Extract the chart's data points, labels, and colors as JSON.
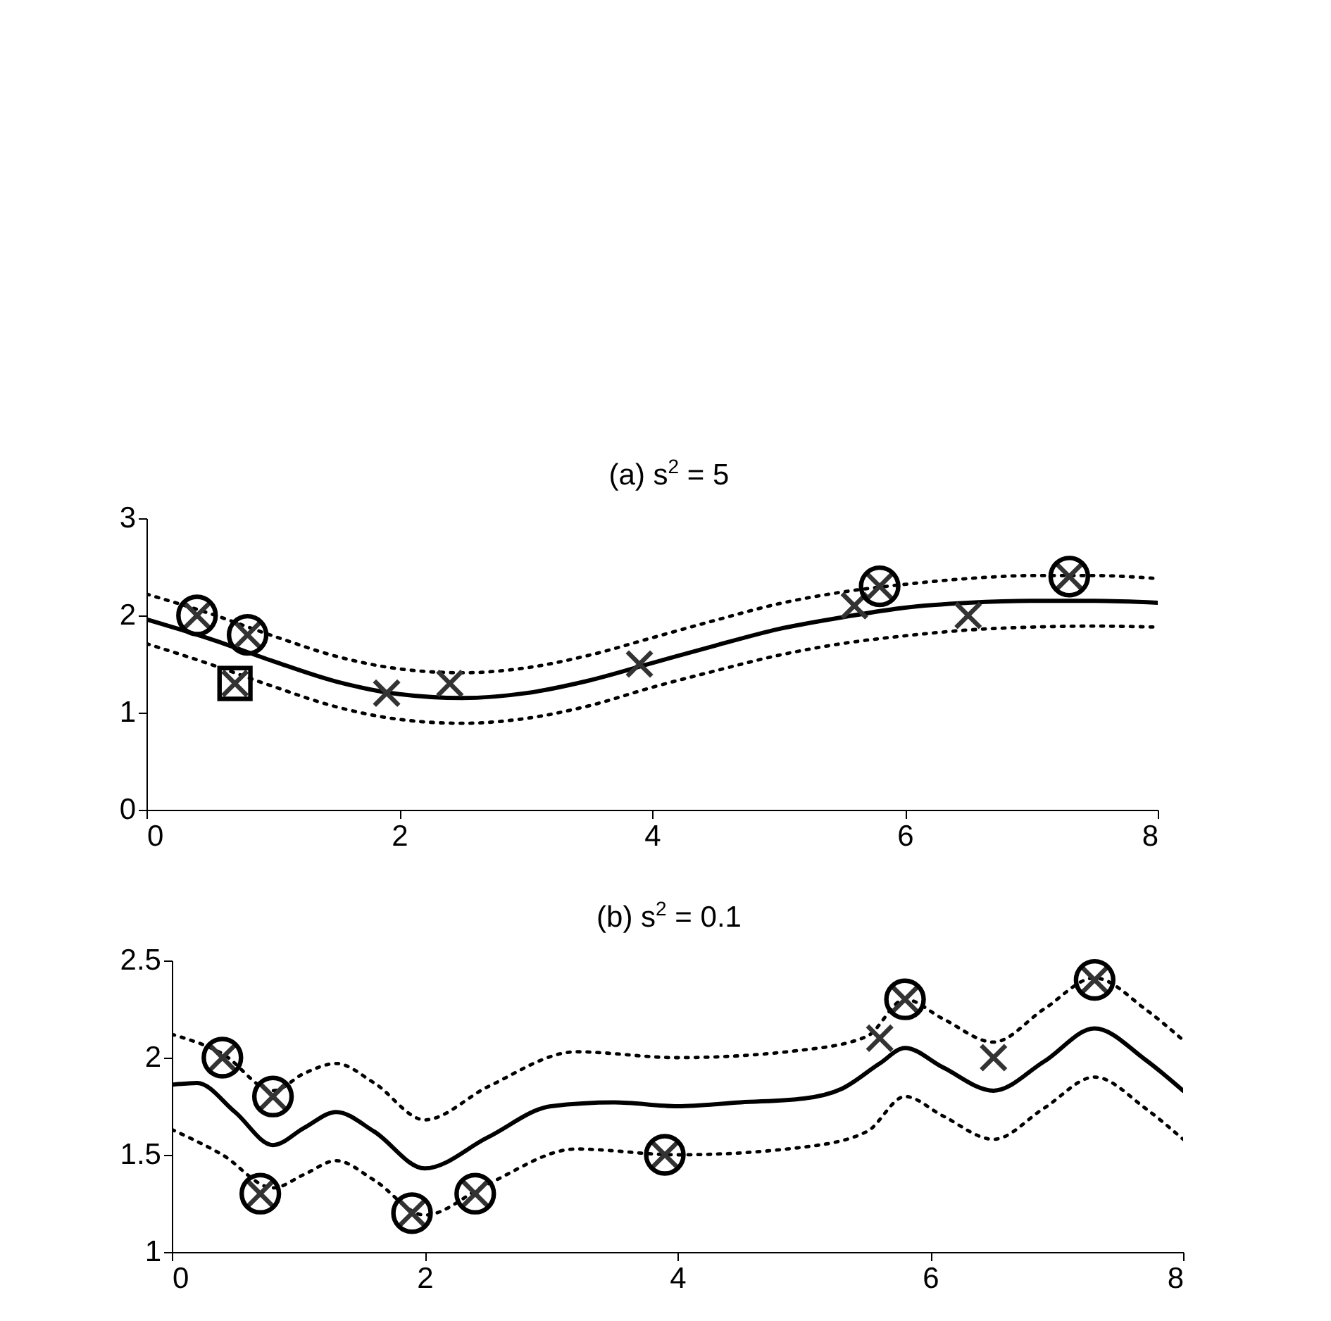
{
  "chart_data": [
    {
      "type": "line",
      "title": "(a) s$^{2}$ = 5",
      "xlim": [
        0,
        8
      ],
      "xticks": [
        0,
        2,
        4,
        6,
        8
      ],
      "ylim": [
        0,
        3
      ],
      "yticks": [
        0,
        1,
        2,
        3
      ],
      "series": [
        {
          "type": "line",
          "line_style": "solid",
          "color": "#000000",
          "x": [
            0,
            0.5,
            1,
            1.5,
            2,
            2.5,
            3,
            3.5,
            4,
            4.5,
            5,
            5.5,
            6,
            6.5,
            7,
            7.5,
            8
          ],
          "values": [
            1.96,
            1.76,
            1.53,
            1.32,
            1.19,
            1.15,
            1.2,
            1.33,
            1.51,
            1.69,
            1.86,
            1.98,
            2.08,
            2.13,
            2.15,
            2.15,
            2.13
          ]
        },
        {
          "type": "line",
          "line_style": "dotted",
          "color": "#000000",
          "x": [
            0,
            0.5,
            1,
            1.5,
            2,
            2.5,
            3,
            3.5,
            4,
            4.5,
            5,
            5.5,
            6,
            6.5,
            7,
            7.5,
            8
          ],
          "values": [
            2.22,
            2.02,
            1.79,
            1.58,
            1.45,
            1.41,
            1.46,
            1.59,
            1.77,
            1.95,
            2.12,
            2.24,
            2.32,
            2.38,
            2.41,
            2.41,
            2.38
          ]
        },
        {
          "type": "line",
          "line_style": "dotted",
          "color": "#000000",
          "x": [
            0,
            0.5,
            1,
            1.5,
            2,
            2.5,
            3,
            3.5,
            4,
            4.5,
            5,
            5.5,
            6,
            6.5,
            7,
            7.5,
            8
          ],
          "values": [
            1.71,
            1.5,
            1.27,
            1.06,
            0.93,
            0.89,
            0.94,
            1.07,
            1.26,
            1.43,
            1.59,
            1.71,
            1.79,
            1.85,
            1.88,
            1.89,
            1.88
          ]
        },
        {
          "type": "scatter",
          "marker": "cross",
          "color": "#333333",
          "x": [
            0.4,
            0.7,
            0.8,
            1.9,
            2.4,
            3.9,
            5.6,
            5.8,
            6.5,
            7.3
          ],
          "values": [
            2.0,
            1.3,
            1.8,
            1.2,
            1.3,
            1.5,
            2.1,
            2.3,
            2.0,
            2.4
          ]
        },
        {
          "type": "scatter",
          "marker": "circle",
          "color": "#000000",
          "x": [
            0.4,
            0.8,
            5.8,
            7.3
          ],
          "values": [
            2.0,
            1.8,
            2.3,
            2.4
          ]
        },
        {
          "type": "scatter",
          "marker": "square",
          "color": "#000000",
          "x": [
            0.7
          ],
          "values": [
            1.3
          ]
        }
      ]
    },
    {
      "type": "line",
      "title": "(b) s$^{2}$ = 0.1",
      "xlim": [
        0,
        8
      ],
      "xticks": [
        0,
        2,
        4,
        6,
        8
      ],
      "ylim": [
        1,
        2.5
      ],
      "yticks": [
        1,
        1.5,
        2,
        2.5
      ],
      "series": [
        {
          "type": "line",
          "line_style": "solid",
          "color": "#000000",
          "x": [
            0,
            0.2,
            0.5,
            0.8,
            1.05,
            1.3,
            1.6,
            2,
            2.5,
            3,
            3.5,
            4,
            4.5,
            5,
            5.3,
            5.6,
            5.8,
            6.1,
            6.5,
            6.9,
            7.3,
            7.7,
            8
          ],
          "values": [
            1.86,
            1.87,
            1.72,
            1.55,
            1.64,
            1.72,
            1.62,
            1.43,
            1.59,
            1.75,
            1.77,
            1.75,
            1.77,
            1.79,
            1.84,
            1.97,
            2.05,
            1.95,
            1.83,
            1.98,
            2.15,
            1.99,
            1.83
          ]
        },
        {
          "type": "line",
          "line_style": "dotted",
          "color": "#000000",
          "x": [
            0,
            0.4,
            0.8,
            1.05,
            1.3,
            1.6,
            2,
            2.5,
            3.2,
            4,
            5,
            5.5,
            5.8,
            6.1,
            6.5,
            6.9,
            7.3,
            7.7,
            8
          ],
          "values": [
            2.12,
            2.02,
            1.83,
            1.92,
            1.97,
            1.87,
            1.68,
            1.85,
            2.03,
            2.0,
            2.04,
            2.11,
            2.3,
            2.2,
            2.08,
            2.25,
            2.41,
            2.25,
            2.09
          ]
        },
        {
          "type": "line",
          "line_style": "dotted",
          "color": "#000000",
          "x": [
            0,
            0.4,
            0.8,
            1.05,
            1.3,
            1.6,
            2,
            2.5,
            3.2,
            4,
            5,
            5.5,
            5.8,
            6.1,
            6.5,
            6.9,
            7.3,
            7.7,
            8
          ],
          "values": [
            1.63,
            1.5,
            1.33,
            1.4,
            1.47,
            1.37,
            1.19,
            1.35,
            1.53,
            1.5,
            1.54,
            1.62,
            1.8,
            1.7,
            1.58,
            1.74,
            1.9,
            1.74,
            1.58
          ]
        },
        {
          "type": "scatter",
          "marker": "cross",
          "color": "#333333",
          "x": [
            0.4,
            0.7,
            0.8,
            1.9,
            2.4,
            3.9,
            5.6,
            5.8,
            6.5,
            7.3
          ],
          "values": [
            2.0,
            1.3,
            1.8,
            1.2,
            1.3,
            1.5,
            2.1,
            2.3,
            2.0,
            2.4
          ]
        },
        {
          "type": "scatter",
          "marker": "circle",
          "color": "#000000",
          "x": [
            0.4,
            0.7,
            0.8,
            1.9,
            2.4,
            3.9,
            5.8,
            7.3
          ],
          "values": [
            2.0,
            1.3,
            1.8,
            1.2,
            1.3,
            1.5,
            2.3,
            2.4
          ]
        }
      ]
    }
  ]
}
